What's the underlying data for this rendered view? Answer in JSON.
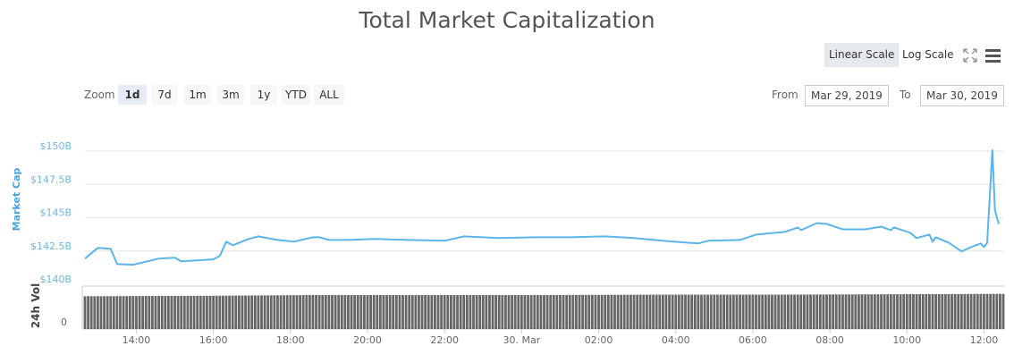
{
  "chart_data": {
    "type": "line",
    "title": "Total Market Capitalization",
    "ylabel": "Market Cap",
    "volume_label": "24h Vol",
    "ylim": [
      140,
      150
    ],
    "y_ticks": [
      "$140B",
      "$142.5B",
      "$145B",
      "$147.5B",
      "$150B"
    ],
    "y_tick_values": [
      140,
      142.5,
      145,
      147.5,
      150
    ],
    "volume_ticks": [
      "0"
    ],
    "x_range": [
      "2019-03-29 12:40",
      "2019-03-30 12:30"
    ],
    "x_ticks": [
      {
        "label": "14:00",
        "t": "2019-03-29 14:00"
      },
      {
        "label": "16:00",
        "t": "2019-03-29 16:00"
      },
      {
        "label": "18:00",
        "t": "2019-03-29 18:00"
      },
      {
        "label": "20:00",
        "t": "2019-03-29 20:00"
      },
      {
        "label": "22:00",
        "t": "2019-03-29 22:00"
      },
      {
        "label": "30. Mar",
        "t": "2019-03-30 00:00"
      },
      {
        "label": "02:00",
        "t": "2019-03-30 02:00"
      },
      {
        "label": "04:00",
        "t": "2019-03-30 04:00"
      },
      {
        "label": "06:00",
        "t": "2019-03-30 06:00"
      },
      {
        "label": "08:00",
        "t": "2019-03-30 08:00"
      },
      {
        "label": "10:00",
        "t": "2019-03-30 10:00"
      },
      {
        "label": "12:00",
        "t": "2019-03-30 12:00"
      }
    ],
    "grid": true,
    "line_color": "#5bb5e8",
    "volume_color": "#666666",
    "series": [
      {
        "unit": "B USD",
        "points": [
          [
            "2019-03-29 12:40",
            141.93
          ],
          [
            "2019-03-29 13:00",
            142.73
          ],
          [
            "2019-03-29 13:20",
            142.67
          ],
          [
            "2019-03-29 13:30",
            141.53
          ],
          [
            "2019-03-29 13:55",
            141.47
          ],
          [
            "2019-03-29 14:35",
            141.93
          ],
          [
            "2019-03-29 15:00",
            142.0
          ],
          [
            "2019-03-29 15:10",
            141.73
          ],
          [
            "2019-03-29 16:00",
            141.87
          ],
          [
            "2019-03-29 16:10",
            142.13
          ],
          [
            "2019-03-29 16:20",
            143.2
          ],
          [
            "2019-03-29 16:30",
            142.93
          ],
          [
            "2019-03-29 16:55",
            143.4
          ],
          [
            "2019-03-29 17:10",
            143.6
          ],
          [
            "2019-03-29 17:40",
            143.33
          ],
          [
            "2019-03-29 18:05",
            143.2
          ],
          [
            "2019-03-29 18:35",
            143.53
          ],
          [
            "2019-03-29 18:45",
            143.53
          ],
          [
            "2019-03-29 19:00",
            143.33
          ],
          [
            "2019-03-29 19:30",
            143.33
          ],
          [
            "2019-03-29 20:10",
            143.4
          ],
          [
            "2019-03-29 21:05",
            143.33
          ],
          [
            "2019-03-29 22:00",
            143.27
          ],
          [
            "2019-03-29 22:30",
            143.6
          ],
          [
            "2019-03-29 23:25",
            143.47
          ],
          [
            "2019-03-30 00:20",
            143.53
          ],
          [
            "2019-03-30 01:15",
            143.53
          ],
          [
            "2019-03-30 02:10",
            143.6
          ],
          [
            "2019-03-30 02:55",
            143.47
          ],
          [
            "2019-03-30 03:40",
            143.27
          ],
          [
            "2019-03-30 04:35",
            143.07
          ],
          [
            "2019-03-30 04:50",
            143.27
          ],
          [
            "2019-03-30 05:40",
            143.33
          ],
          [
            "2019-03-30 06:05",
            143.73
          ],
          [
            "2019-03-30 06:50",
            143.93
          ],
          [
            "2019-03-30 07:10",
            144.27
          ],
          [
            "2019-03-30 07:15",
            144.07
          ],
          [
            "2019-03-30 07:40",
            144.6
          ],
          [
            "2019-03-30 07:55",
            144.53
          ],
          [
            "2019-03-30 08:20",
            144.13
          ],
          [
            "2019-03-30 08:55",
            144.13
          ],
          [
            "2019-03-30 09:20",
            144.33
          ],
          [
            "2019-03-30 09:35",
            144.07
          ],
          [
            "2019-03-30 09:40",
            144.27
          ],
          [
            "2019-03-30 10:05",
            143.87
          ],
          [
            "2019-03-30 10:15",
            143.47
          ],
          [
            "2019-03-30 10:35",
            143.73
          ],
          [
            "2019-03-30 10:40",
            143.2
          ],
          [
            "2019-03-30 10:45",
            143.53
          ],
          [
            "2019-03-30 11:05",
            143.13
          ],
          [
            "2019-03-30 11:25",
            142.47
          ],
          [
            "2019-03-30 11:40",
            142.8
          ],
          [
            "2019-03-30 11:55",
            143.07
          ],
          [
            "2019-03-30 12:00",
            142.8
          ],
          [
            "2019-03-30 12:05",
            143.13
          ],
          [
            "2019-03-30 12:13",
            150.07
          ],
          [
            "2019-03-30 12:17",
            145.53
          ],
          [
            "2019-03-30 12:23",
            144.53
          ]
        ]
      }
    ],
    "volume_relative_trend": [
      0.84,
      0.85,
      0.87,
      0.87,
      0.87,
      0.88,
      0.88,
      0.89,
      0.9
    ]
  },
  "controls": {
    "linear_scale": "Linear Scale",
    "log_scale": "Log Scale",
    "zoom_label": "Zoom",
    "zoom_options": [
      "1d",
      "7d",
      "1m",
      "3m",
      "1y",
      "YTD",
      "ALL"
    ],
    "zoom_selected": "1d",
    "from_label": "From",
    "from_value": "Mar 29, 2019",
    "to_label": "To",
    "to_value": "Mar 30, 2019",
    "fullscreen_icon": "fullscreen-icon",
    "menu_icon": "hamburger-menu-icon"
  }
}
